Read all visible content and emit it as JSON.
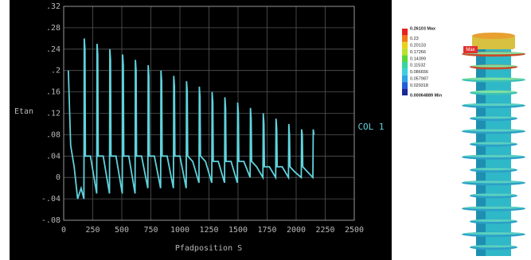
{
  "chart_data": {
    "type": "line",
    "x_label": "Pfadposition S",
    "y_label": "Etan",
    "series": [
      {
        "name": "COL 1",
        "color": "#5fd3dd",
        "x": [
          40,
          60,
          90,
          120,
          150,
          174,
          177,
          183,
          187,
          230,
          284,
          287,
          293,
          297,
          340,
          394,
          397,
          403,
          407,
          450,
          504,
          507,
          513,
          517,
          560,
          614,
          617,
          623,
          627,
          670,
          724,
          727,
          733,
          737,
          780,
          834,
          837,
          843,
          847,
          890,
          944,
          947,
          953,
          957,
          1000,
          1054,
          1057,
          1063,
          1067,
          1110,
          1164,
          1167,
          1173,
          1177,
          1220,
          1274,
          1277,
          1283,
          1287,
          1330,
          1384,
          1387,
          1393,
          1397,
          1440,
          1494,
          1497,
          1503,
          1507,
          1550,
          1604,
          1607,
          1613,
          1617,
          1660,
          1714,
          1717,
          1723,
          1727,
          1770,
          1824,
          1827,
          1833,
          1837,
          1880,
          1934,
          1937,
          1943,
          1947,
          1990,
          2044,
          2047,
          2053,
          2057,
          2100,
          2144,
          2147,
          2153
        ],
        "values": [
          0.2,
          0.06,
          0.02,
          -0.04,
          -0.02,
          -0.04,
          0.26,
          0.24,
          0.04,
          0.04,
          -0.03,
          0.25,
          0.23,
          0.04,
          0.04,
          -0.03,
          0.24,
          0.22,
          0.04,
          0.04,
          -0.03,
          0.23,
          0.21,
          0.04,
          0.04,
          -0.03,
          0.22,
          0.2,
          0.04,
          0.04,
          -0.02,
          0.21,
          0.19,
          0.04,
          0.04,
          -0.02,
          0.2,
          0.18,
          0.04,
          0.04,
          -0.02,
          0.19,
          0.17,
          0.04,
          0.04,
          -0.02,
          0.18,
          0.16,
          0.04,
          0.03,
          -0.01,
          0.17,
          0.15,
          0.04,
          0.03,
          -0.01,
          0.16,
          0.14,
          0.03,
          0.03,
          -0.01,
          0.15,
          0.13,
          0.03,
          0.03,
          -0.01,
          0.14,
          0.12,
          0.03,
          0.03,
          0,
          0.13,
          0.11,
          0.03,
          0.02,
          0,
          0.12,
          0.1,
          0.02,
          0.02,
          0,
          0.11,
          0.09,
          0.02,
          0.02,
          0,
          0.1,
          0.08,
          0.02,
          0.01,
          0,
          0.09,
          0.08,
          0.02,
          0.01,
          0,
          0.09,
          0.08
        ]
      }
    ],
    "xlim": [
      0,
      2500
    ],
    "xticks": [
      0,
      250,
      500,
      750,
      1000,
      1250,
      1500,
      1750,
      2000,
      2250,
      2500
    ],
    "ylim": [
      -0.08,
      0.32
    ],
    "yticks": [
      {
        "value": -0.08,
        "label": "-.08"
      },
      {
        "value": -0.04,
        "label": "-.04"
      },
      0,
      {
        "value": 0.04,
        "label": ".04"
      },
      {
        "value": 0.08,
        "label": ".08"
      },
      {
        "value": 0.12,
        "label": ".12"
      },
      {
        "value": 0.16,
        "label": ".16"
      },
      {
        "value": 0.2,
        "label": ".2"
      },
      {
        "value": 0.24,
        "label": ".24"
      },
      {
        "value": 0.28,
        "label": ".28"
      },
      {
        "value": 0.32,
        "label": ".32"
      }
    ],
    "grid": true
  },
  "color_legend": {
    "labels": [
      "0.26103 Max",
      "0.23",
      "0.20133",
      "0.17266",
      "0.14399",
      "0.11532",
      "0.086656",
      "0.057987",
      "0.029318",
      "0.00064889 Min"
    ],
    "colors": [
      "#e8221c",
      "#f07a18",
      "#e8d21a",
      "#b8e02a",
      "#5ad63a",
      "#34d6a0",
      "#3ad0e0",
      "#2aa6e8",
      "#2060d8",
      "#1a2a98"
    ]
  },
  "annotation": "Max"
}
